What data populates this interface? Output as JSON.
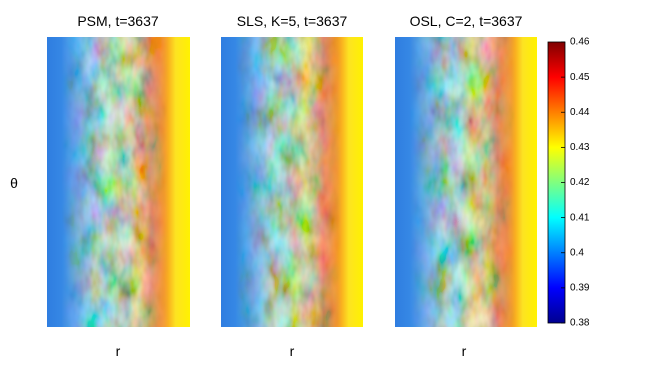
{
  "panels": [
    {
      "title": "PSM, t=3637",
      "xlabel": "r"
    },
    {
      "title": "SLS, K=5, t=3637",
      "xlabel": "r"
    },
    {
      "title": "OSL, C=2, t=3637",
      "xlabel": "r"
    }
  ],
  "ylabel": "θ",
  "colorbar": {
    "ticks": [
      0.46,
      0.45,
      0.44,
      0.43,
      0.42,
      0.41,
      0.4,
      0.39,
      0.38
    ]
  }
}
